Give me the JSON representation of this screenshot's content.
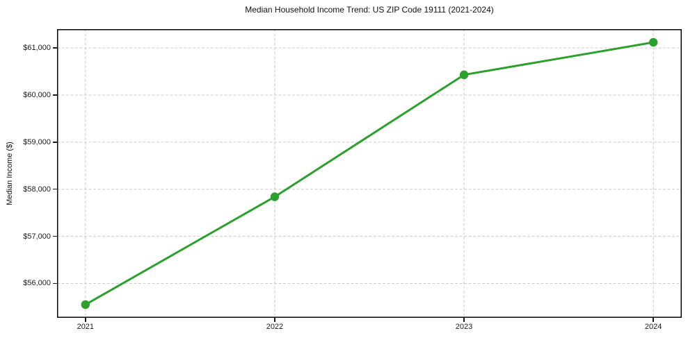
{
  "chart_data": {
    "type": "line",
    "title": "Median Household Income Trend: US ZIP Code 19111 (2021-2024)",
    "xlabel": "",
    "ylabel": "Median Income ($)",
    "x": [
      2021,
      2022,
      2023,
      2024
    ],
    "series": [
      {
        "name": "Median Household Income",
        "values": [
          55550,
          57840,
          60430,
          61120
        ]
      }
    ],
    "x_ticks": [
      {
        "value": 2021,
        "label": "2021"
      },
      {
        "value": 2022,
        "label": "2022"
      },
      {
        "value": 2023,
        "label": "2023"
      },
      {
        "value": 2024,
        "label": "2024"
      }
    ],
    "y_ticks": [
      {
        "value": 56000,
        "label": "$56,000"
      },
      {
        "value": 57000,
        "label": "$57,000"
      },
      {
        "value": 58000,
        "label": "$58,000"
      },
      {
        "value": 59000,
        "label": "$59,000"
      },
      {
        "value": 60000,
        "label": "$60,000"
      },
      {
        "value": 61000,
        "label": "$61,000"
      }
    ],
    "xlim": [
      2020.85,
      2024.15
    ],
    "ylim": [
      55270,
      61400
    ],
    "grid": true,
    "grid_style": "dashed",
    "legend": false,
    "colors": {
      "line": "#2ca02c",
      "marker": "#2ca02c",
      "grid": "#cccccc",
      "frame": "#000000",
      "text": "#1a1a1a",
      "background": "#ffffff"
    }
  }
}
